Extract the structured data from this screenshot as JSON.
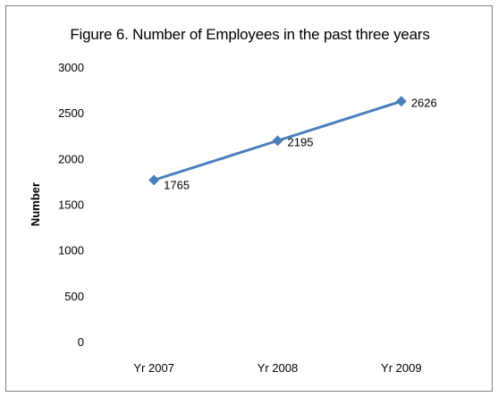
{
  "chart_data": {
    "type": "line",
    "title": "Figure 6. Number of Employees in the past three years",
    "xlabel": "",
    "ylabel": "Number",
    "categories": [
      "Yr 2007",
      "Yr 2008",
      "Yr 2009"
    ],
    "series": [
      {
        "values": [
          1765,
          2195,
          2626
        ],
        "color": "#4a7ebb"
      }
    ],
    "ylim": [
      0,
      3000
    ],
    "yticks": [
      0,
      500,
      1000,
      1500,
      2000,
      2500,
      3000
    ],
    "grid": false,
    "legend": "none"
  }
}
